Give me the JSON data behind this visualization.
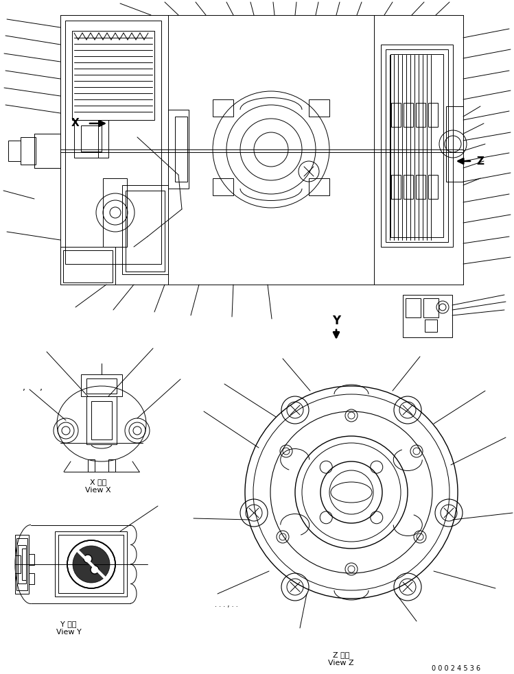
{
  "background_color": "#ffffff",
  "line_color": "#000000",
  "text_color": "#000000",
  "fig_width": 7.49,
  "fig_height": 9.83,
  "dpi": 100,
  "part_number": "0 0 0 2 4 5 3 6",
  "labels": {
    "X_arrow": "X",
    "Z_arrow": "Z",
    "Y_arrow": "Y",
    "view_x_jp": "X 　視",
    "view_x_en": "View X",
    "view_y_jp": "Y 　視",
    "view_y_en": "View Y",
    "view_z_jp": "Z 　視",
    "view_z_en": "View Z",
    "comma_marks": ",  ,"
  }
}
